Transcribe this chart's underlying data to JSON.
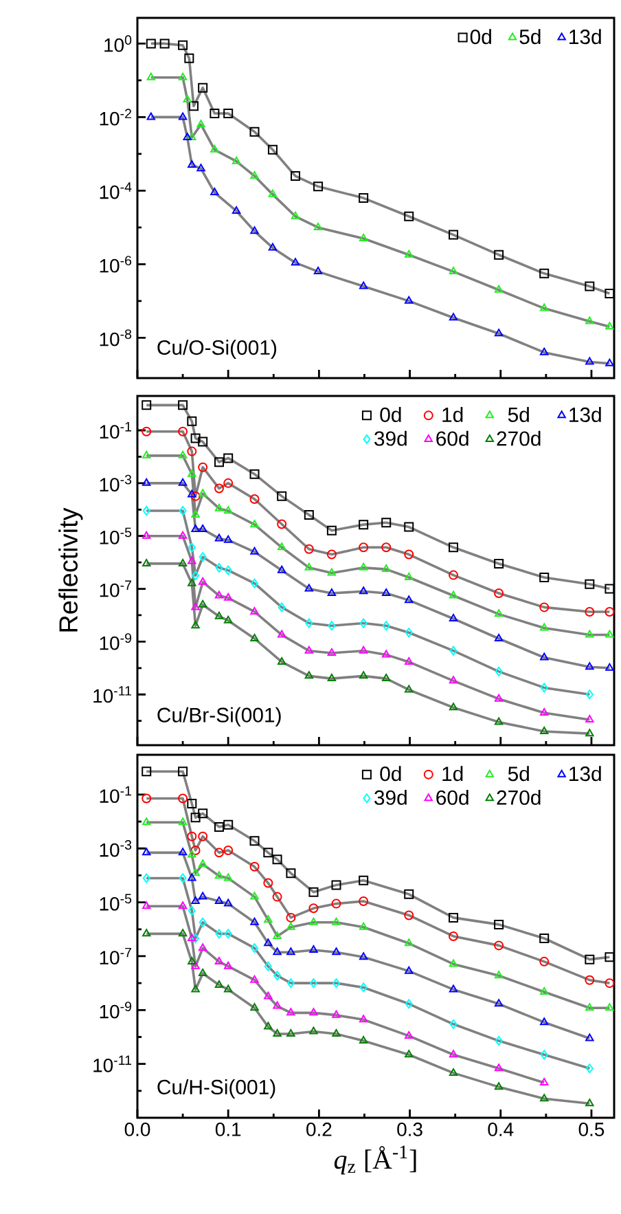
{
  "chart_data": [
    {
      "type": "scatter",
      "log": true,
      "tick_labels": "y",
      "legend": "top right",
      "xlim": [
        0,
        0.525
      ],
      "ylim": [
        8e-10,
        5
      ],
      "yticks": [
        {
          "value": 1,
          "label": "10$^{0}$"
        },
        {
          "value": 0.1,
          "label": null
        },
        {
          "value": 0.01,
          "label": "10$^{-2}$"
        },
        {
          "value": 0.001,
          "label": null
        },
        {
          "value": 0.0001,
          "label": "10$^{-4}$"
        },
        {
          "value": 1e-05,
          "label": null
        },
        {
          "value": 1e-06,
          "label": "10$^{-6}$"
        },
        {
          "value": 1e-07,
          "label": null
        },
        {
          "value": 1e-08,
          "label": "10$^{-8}$"
        }
      ],
      "annotations": [
        "Cu/O-Si(001)"
      ],
      "series": [
        {
          "name": "0d",
          "color": "#000000",
          "marker": "square",
          "x": [
            0.015,
            0.03,
            0.05,
            0.057,
            0.062,
            0.072,
            0.085,
            0.1,
            0.129,
            0.149,
            0.174,
            0.199,
            0.249,
            0.299,
            0.348,
            0.398,
            0.448,
            0.498,
            0.52
          ],
          "values": [
            1,
            1,
            0.9,
            0.4,
            0.02,
            0.063,
            0.0126,
            0.0126,
            0.004,
            0.0013,
            0.00025,
            0.00013,
            6.3e-05,
            2e-05,
            6.3e-06,
            1.8e-06,
            5.6e-07,
            2.5e-07,
            1.6e-07
          ]
        },
        {
          "name": "5d",
          "color": "#22ee22",
          "marker": "triangle",
          "x": [
            0.015,
            0.05,
            0.055,
            0.06,
            0.07,
            0.085,
            0.109,
            0.129,
            0.149,
            0.174,
            0.199,
            0.249,
            0.299,
            0.348,
            0.398,
            0.448,
            0.498,
            0.52
          ],
          "values": [
            0.12,
            0.12,
            0.03,
            0.0028,
            0.0063,
            0.0013,
            0.00063,
            0.00025,
            7.9e-05,
            2e-05,
            1e-05,
            5e-06,
            1.8e-06,
            6.3e-07,
            2e-07,
            6.3e-08,
            2.8e-08,
            2e-08
          ]
        },
        {
          "name": "13d",
          "color": "#0000ff",
          "marker": "triangle",
          "x": [
            0.015,
            0.05,
            0.055,
            0.06,
            0.07,
            0.085,
            0.109,
            0.129,
            0.149,
            0.174,
            0.199,
            0.249,
            0.299,
            0.348,
            0.398,
            0.448,
            0.498,
            0.52
          ],
          "values": [
            0.01,
            0.01,
            0.0028,
            0.0005,
            0.0004,
            8.9e-05,
            2.8e-05,
            7.9e-06,
            2.8e-06,
            1.1e-06,
            6.3e-07,
            2.5e-07,
            1e-07,
            3.5e-08,
            1.3e-08,
            4e-09,
            2.2e-09,
            2e-09
          ]
        },
        {
          "type": "line",
          "color": "#808080",
          "x": [
            0.015,
            0.03,
            0.05,
            0.057,
            0.062,
            0.072,
            0.085,
            0.1,
            0.129,
            0.149,
            0.174,
            0.199,
            0.249,
            0.299,
            0.348,
            0.398,
            0.448,
            0.498,
            0.52
          ],
          "values": [
            1,
            1,
            0.9,
            0.4,
            0.02,
            0.063,
            0.0126,
            0.0126,
            0.004,
            0.0013,
            0.00025,
            0.00013,
            6.3e-05,
            2e-05,
            6.3e-06,
            1.8e-06,
            5.6e-07,
            2.5e-07,
            1.6e-07
          ]
        },
        {
          "type": "line",
          "color": "#808080",
          "x": [
            0.015,
            0.05,
            0.055,
            0.06,
            0.07,
            0.085,
            0.109,
            0.129,
            0.149,
            0.174,
            0.199,
            0.249,
            0.299,
            0.348,
            0.398,
            0.448,
            0.498,
            0.52
          ],
          "values": [
            0.12,
            0.12,
            0.03,
            0.0028,
            0.0063,
            0.0013,
            0.00063,
            0.00025,
            7.9e-05,
            2e-05,
            1e-05,
            5e-06,
            1.8e-06,
            6.3e-07,
            2e-07,
            6.3e-08,
            2.8e-08,
            2e-08
          ]
        },
        {
          "type": "line",
          "color": "#808080",
          "x": [
            0.015,
            0.05,
            0.055,
            0.06,
            0.07,
            0.085,
            0.109,
            0.129,
            0.149,
            0.174,
            0.199,
            0.249,
            0.299,
            0.348,
            0.398,
            0.448,
            0.498,
            0.52
          ],
          "values": [
            0.01,
            0.01,
            0.0028,
            0.0005,
            0.0004,
            8.9e-05,
            2.8e-05,
            7.9e-06,
            2.8e-06,
            1.1e-06,
            6.3e-07,
            2.5e-07,
            1e-07,
            3.5e-08,
            1.3e-08,
            4e-09,
            2.2e-09,
            2e-09
          ]
        }
      ]
    },
    {
      "type": "scatter",
      "log": true,
      "tick_labels": "y",
      "legend": "top right",
      "xlim": [
        0,
        0.525
      ],
      "ylim": [
        1.2e-13,
        2
      ],
      "ylabel": "Reflectivity",
      "yticks": [
        {
          "value": 0.1,
          "label": "10$^{-1}$"
        },
        {
          "value": 0.01,
          "label": null
        },
        {
          "value": 0.001,
          "label": "10$^{-3}$"
        },
        {
          "value": 0.0001,
          "label": null
        },
        {
          "value": 1e-05,
          "label": "10$^{-5}$"
        },
        {
          "value": 1e-06,
          "label": null
        },
        {
          "value": 1e-07,
          "label": "10$^{-7}$"
        },
        {
          "value": 1e-08,
          "label": null
        },
        {
          "value": 1e-09,
          "label": "10$^{-9}$"
        },
        {
          "value": 1e-10,
          "label": null
        },
        {
          "value": 1e-11,
          "label": "10$^{-11}$"
        },
        {
          "value": 1e-12,
          "label": null
        }
      ],
      "annotations": [
        "Cu/Br-Si(001)"
      ],
      "x": [
        0.01,
        0.05,
        0.06,
        0.064,
        0.072,
        0.09,
        0.1,
        0.129,
        0.159,
        0.189,
        0.214,
        0.249,
        0.274,
        0.299,
        0.348,
        0.398,
        0.448,
        0.498,
        0.52
      ],
      "series": [
        {
          "name": "0d",
          "color": "#000000",
          "marker": "square",
          "values": [
            0.9,
            0.9,
            0.22,
            0.05,
            0.037,
            0.0063,
            0.0089,
            0.0022,
            0.00032,
            6.3e-05,
            1.6e-05,
            2.7e-05,
            3.2e-05,
            2.2e-05,
            3.7e-06,
            8.9e-07,
            2.7e-07,
            1.5e-07,
            1e-07
          ]
        },
        {
          "name": "1d",
          "color": "#ff0000",
          "marker": "circle",
          "values": [
            0.09,
            0.09,
            0.016,
            0.00032,
            0.004,
            0.00063,
            0.001,
            0.00025,
            2.8e-05,
            3.2e-06,
            2e-06,
            3.7e-06,
            3.7e-06,
            2e-06,
            3.3e-07,
            6.8e-08,
            2e-08,
            1.35e-08,
            1.35e-08
          ]
        },
        {
          "name": "5d",
          "color": "#22ee22",
          "marker": "triangle",
          "values": [
            0.011,
            0.011,
            0.0022,
            6.3e-05,
            0.0004,
            0.00011,
            8.9e-05,
            2.7e-05,
            3.7e-06,
            6.3e-07,
            4e-07,
            6.3e-07,
            5.5e-07,
            2.7e-07,
            5.5e-08,
            1.1e-08,
            3.3e-09,
            1.8e-09,
            1.8e-09
          ]
        },
        {
          "name": "13d",
          "color": "#0000ff",
          "marker": "triangle",
          "values": [
            0.001,
            0.001,
            0.00037,
            1.8e-05,
            1.8e-05,
            8e-06,
            7e-06,
            2.5e-06,
            5e-07,
            1e-07,
            6.8e-08,
            8e-08,
            6.8e-08,
            3.7e-08,
            7.4e-09,
            1.3e-09,
            2.5e-10,
            1.1e-10,
            1e-10
          ]
        },
        {
          "name": "39d",
          "color": "#00ffff",
          "marker": "diamond",
          "values": [
            9e-05,
            9e-05,
            3.7e-06,
            3.2e-07,
            1.6e-06,
            6.3e-07,
            5e-07,
            1.6e-07,
            2e-08,
            5e-09,
            4e-09,
            5e-09,
            4e-09,
            2.2e-09,
            4.5e-10,
            7.4e-11,
            1.8e-11,
            1e-11,
            null
          ]
        },
        {
          "name": "60d",
          "color": "#ff00ff",
          "marker": "triangle",
          "values": [
            1e-05,
            1e-05,
            1.1e-06,
            2e-08,
            1.8e-07,
            5.5e-08,
            4.5e-08,
            1.35e-08,
            1.8e-09,
            4.5e-10,
            3.7e-10,
            4.5e-10,
            3.2e-10,
            1.7e-10,
            3.3e-11,
            6.8e-12,
            2e-12,
            1.1e-12,
            null
          ]
        },
        {
          "name": "270d",
          "color": "#008000",
          "marker": "triangle",
          "values": [
            9e-07,
            9e-07,
            1.6e-07,
            4e-09,
            2.5e-08,
            9e-09,
            6.3e-09,
            1.3e-09,
            1.7e-10,
            5e-11,
            4e-11,
            5e-11,
            4e-11,
            1.5e-11,
            3.2e-12,
            9e-13,
            4e-13,
            3.3e-13,
            null
          ]
        },
        {
          "type": "line",
          "color": "#808080",
          "values": [
            0.9,
            0.9,
            0.22,
            0.05,
            0.037,
            0.0063,
            0.0089,
            0.0022,
            0.00032,
            6.3e-05,
            1.6e-05,
            2.7e-05,
            3.2e-05,
            2.2e-05,
            3.7e-06,
            8.9e-07,
            2.7e-07,
            1.5e-07,
            1e-07
          ]
        },
        {
          "type": "line",
          "color": "#808080",
          "values": [
            0.09,
            0.09,
            0.016,
            0.00032,
            0.004,
            0.00063,
            0.001,
            0.00025,
            2.8e-05,
            3.2e-06,
            2e-06,
            3.7e-06,
            3.7e-06,
            2e-06,
            3.3e-07,
            6.8e-08,
            2e-08,
            1.35e-08,
            1.35e-08
          ]
        },
        {
          "type": "line",
          "color": "#808080",
          "values": [
            0.011,
            0.011,
            0.0022,
            6.3e-05,
            0.0004,
            0.00011,
            8.9e-05,
            2.7e-05,
            3.7e-06,
            6.3e-07,
            4e-07,
            6.3e-07,
            5.5e-07,
            2.7e-07,
            5.5e-08,
            1.1e-08,
            3.3e-09,
            1.8e-09,
            1.8e-09
          ]
        },
        {
          "type": "line",
          "color": "#808080",
          "values": [
            0.001,
            0.001,
            0.00037,
            1.8e-05,
            1.8e-05,
            8e-06,
            7e-06,
            2.5e-06,
            5e-07,
            1e-07,
            6.8e-08,
            8e-08,
            6.8e-08,
            3.7e-08,
            7.4e-09,
            1.3e-09,
            2.5e-10,
            1.1e-10,
            1e-10
          ]
        },
        {
          "type": "line",
          "color": "#808080",
          "values": [
            9e-05,
            9e-05,
            3.7e-06,
            3.2e-07,
            1.6e-06,
            6.3e-07,
            5e-07,
            1.6e-07,
            2e-08,
            5e-09,
            4e-09,
            5e-09,
            4e-09,
            2.2e-09,
            4.5e-10,
            7.4e-11,
            1.8e-11,
            1e-11,
            null
          ]
        },
        {
          "type": "line",
          "color": "#808080",
          "values": [
            1e-05,
            1e-05,
            1.1e-06,
            2e-08,
            1.8e-07,
            5.5e-08,
            4.5e-08,
            1.35e-08,
            1.8e-09,
            4.5e-10,
            3.7e-10,
            4.5e-10,
            3.2e-10,
            1.7e-10,
            3.3e-11,
            6.8e-12,
            2e-12,
            1.1e-12,
            null
          ]
        },
        {
          "type": "line",
          "color": "#808080",
          "values": [
            9e-07,
            9e-07,
            1.6e-07,
            4e-09,
            2.5e-08,
            9e-09,
            6.3e-09,
            1.3e-09,
            1.7e-10,
            5e-11,
            4e-11,
            5e-11,
            4e-11,
            1.5e-11,
            3.2e-12,
            9e-13,
            4e-13,
            3.3e-13,
            null
          ]
        }
      ]
    },
    {
      "type": "scatter",
      "log": true,
      "legend": "top right",
      "xlim": [
        0,
        0.525
      ],
      "ylim": [
        1e-13,
        3
      ],
      "xlabel": "*q*$_{z}$ [Å$^{-1}$]",
      "xticks": [
        {
          "value": 0,
          "label": "0.0"
        },
        {
          "value": 0.05,
          "label": null
        },
        {
          "value": 0.1,
          "label": "0.1"
        },
        {
          "value": 0.15,
          "label": null
        },
        {
          "value": 0.2,
          "label": "0.2"
        },
        {
          "value": 0.25,
          "label": null
        },
        {
          "value": 0.3,
          "label": "0.3"
        },
        {
          "value": 0.35,
          "label": null
        },
        {
          "value": 0.4,
          "label": "0.4"
        },
        {
          "value": 0.45,
          "label": null
        },
        {
          "value": 0.5,
          "label": "0.5"
        }
      ],
      "yticks": [
        {
          "value": 0.1,
          "label": "10$^{-1}$"
        },
        {
          "value": 0.01,
          "label": null
        },
        {
          "value": 0.001,
          "label": "10$^{-3}$"
        },
        {
          "value": 0.0001,
          "label": null
        },
        {
          "value": 1e-05,
          "label": "10$^{-5}$"
        },
        {
          "value": 1e-06,
          "label": null
        },
        {
          "value": 1e-07,
          "label": "10$^{-7}$"
        },
        {
          "value": 1e-08,
          "label": null
        },
        {
          "value": 1e-09,
          "label": "10$^{-9}$"
        },
        {
          "value": 1e-10,
          "label": null
        },
        {
          "value": 1e-11,
          "label": "10$^{-11}$"
        },
        {
          "value": 1e-12,
          "label": null
        }
      ],
      "annotations": [
        "Cu/H-Si(001)"
      ],
      "x": [
        0.01,
        0.05,
        0.06,
        0.064,
        0.072,
        0.09,
        0.1,
        0.129,
        0.144,
        0.154,
        0.169,
        0.194,
        0.219,
        0.249,
        0.299,
        0.348,
        0.398,
        0.448,
        0.498,
        0.52
      ],
      "series": [
        {
          "name": "0d",
          "color": "#000000",
          "marker": "square",
          "values": [
            0.72,
            0.72,
            0.046,
            0.014,
            0.02,
            0.0063,
            0.0076,
            0.0019,
            0.0007,
            0.00039,
            0.00012,
            2.4e-05,
            4.4e-05,
            6.5e-05,
            2e-05,
            2.7e-06,
            1.5e-06,
            4.6e-07,
            7.6e-08,
            9.3e-08
          ]
        },
        {
          "name": "1d",
          "color": "#ff0000",
          "marker": "circle",
          "values": [
            0.072,
            0.072,
            0.0028,
            0.00085,
            0.0028,
            0.0007,
            0.00085,
            0.00021,
            5.2e-05,
            1.6e-05,
            2.7e-06,
            6e-06,
            8.9e-06,
            1.1e-05,
            3.3e-06,
            5.5e-07,
            2.5e-07,
            6.3e-08,
            1.3e-08,
            1e-08
          ]
        },
        {
          "name": "5d",
          "color": "#22ee22",
          "marker": "triangle",
          "values": [
            0.0093,
            0.0093,
            0.00058,
            0.00012,
            0.00026,
            9.5e-05,
            7.9e-05,
            1.6e-05,
            2.2e-06,
            5.5e-07,
            1.2e-06,
            1.8e-06,
            1.8e-06,
            1.2e-06,
            3e-07,
            5.1e-08,
            1.9e-08,
            4.7e-09,
            1.2e-09,
            1.2e-09
          ]
        },
        {
          "name": "13d",
          "color": "#0000ff",
          "marker": "triangle",
          "values": [
            0.0007,
            0.0007,
            7.9e-05,
            1.1e-05,
            1.6e-05,
            1.1e-05,
            8.9e-06,
            1.8e-06,
            3e-07,
            1.4e-07,
            1.4e-07,
            1.7e-07,
            1.4e-07,
            9.3e-08,
            2.8e-08,
            5.8e-09,
            1.7e-09,
            3.5e-10,
            8.9e-11,
            null
          ]
        },
        {
          "name": "39d",
          "color": "#00ffff",
          "marker": "diamond",
          "values": [
            7.9e-05,
            7.9e-05,
            4.9e-06,
            4.6e-07,
            1.8e-06,
            6.8e-07,
            6.8e-07,
            2e-07,
            4.2e-08,
            1.9e-08,
            1e-08,
            1e-08,
            1e-08,
            6.9e-09,
            1.7e-09,
            3e-10,
            7.2e-11,
            2.2e-11,
            6.8e-12,
            null
          ]
        },
        {
          "name": "60d",
          "color": "#ff00ff",
          "marker": "triangle",
          "values": [
            7.2e-06,
            7.2e-06,
            4.6e-07,
            4.2e-08,
            2e-07,
            6.2e-08,
            4.2e-08,
            1.3e-08,
            3.2e-09,
            1.4e-09,
            7.9e-10,
            7.9e-10,
            6.5e-10,
            4.4e-10,
            1.1e-10,
            2.2e-11,
            6.8e-12,
            2e-12,
            null,
            null
          ]
        },
        {
          "name": "270d",
          "color": "#008000",
          "marker": "triangle",
          "values": [
            6.8e-07,
            6.8e-07,
            6.2e-08,
            5.8e-09,
            2.3e-08,
            8.5e-09,
            5.8e-09,
            1.2e-09,
            2.4e-10,
            1.3e-10,
            1.3e-10,
            1.6e-10,
            1.3e-10,
            7.2e-11,
            2.2e-11,
            4.6e-12,
            1.4e-12,
            5.1e-13,
            3.4e-13,
            null
          ]
        },
        {
          "type": "line",
          "color": "#808080",
          "values": [
            0.72,
            0.72,
            0.046,
            0.014,
            0.02,
            0.0063,
            0.0076,
            0.0019,
            0.0007,
            0.00039,
            0.00012,
            2.4e-05,
            4.4e-05,
            6.5e-05,
            2e-05,
            2.7e-06,
            1.5e-06,
            4.6e-07,
            7.6e-08,
            9.3e-08
          ]
        },
        {
          "type": "line",
          "color": "#808080",
          "values": [
            0.072,
            0.072,
            0.0028,
            0.00085,
            0.0028,
            0.0007,
            0.00085,
            0.00021,
            5.2e-05,
            1.6e-05,
            2.7e-06,
            6e-06,
            8.9e-06,
            1.1e-05,
            3.3e-06,
            5.5e-07,
            2.5e-07,
            6.3e-08,
            1.3e-08,
            1e-08
          ]
        },
        {
          "type": "line",
          "color": "#808080",
          "values": [
            0.0093,
            0.0093,
            0.00058,
            0.00012,
            0.00026,
            9.5e-05,
            7.9e-05,
            1.6e-05,
            2.2e-06,
            5.5e-07,
            1.2e-06,
            1.8e-06,
            1.8e-06,
            1.2e-06,
            3e-07,
            5.1e-08,
            1.9e-08,
            4.7e-09,
            1.2e-09,
            1.2e-09
          ]
        },
        {
          "type": "line",
          "color": "#808080",
          "values": [
            0.0007,
            0.0007,
            7.9e-05,
            1.1e-05,
            1.6e-05,
            1.1e-05,
            8.9e-06,
            1.8e-06,
            3e-07,
            1.4e-07,
            1.4e-07,
            1.7e-07,
            1.4e-07,
            9.3e-08,
            2.8e-08,
            5.8e-09,
            1.7e-09,
            3.5e-10,
            8.9e-11,
            null
          ]
        },
        {
          "type": "line",
          "color": "#808080",
          "values": [
            7.9e-05,
            7.9e-05,
            4.9e-06,
            4.6e-07,
            1.8e-06,
            6.8e-07,
            6.8e-07,
            2e-07,
            4.2e-08,
            1.9e-08,
            1e-08,
            1e-08,
            1e-08,
            6.9e-09,
            1.7e-09,
            3e-10,
            7.2e-11,
            2.2e-11,
            6.8e-12,
            null
          ]
        },
        {
          "type": "line",
          "color": "#808080",
          "values": [
            7.2e-06,
            7.2e-06,
            4.6e-07,
            4.2e-08,
            2e-07,
            6.2e-08,
            4.2e-08,
            1.3e-08,
            3.2e-09,
            1.4e-09,
            7.9e-10,
            7.9e-10,
            6.5e-10,
            4.4e-10,
            1.1e-10,
            2.2e-11,
            6.8e-12,
            2e-12,
            null,
            null
          ]
        },
        {
          "type": "line",
          "color": "#808080",
          "values": [
            6.8e-07,
            6.8e-07,
            6.2e-08,
            5.8e-09,
            2.3e-08,
            8.5e-09,
            5.8e-09,
            1.2e-09,
            2.4e-10,
            1.3e-10,
            1.3e-10,
            1.6e-10,
            1.3e-10,
            7.2e-11,
            2.2e-11,
            4.6e-12,
            1.4e-12,
            5.1e-13,
            3.4e-13,
            null
          ]
        }
      ]
    }
  ]
}
